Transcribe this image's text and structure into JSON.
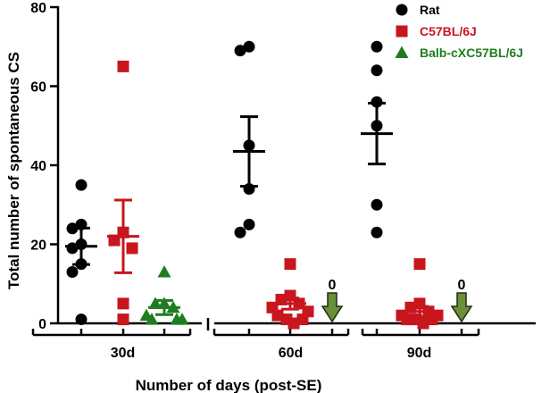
{
  "chart_data": {
    "type": "scatter",
    "title": "",
    "xlabel": "Number of days (post-SE)",
    "ylabel": "Total number of spontaneous CS",
    "ylim": [
      0,
      80
    ],
    "yticks": [
      0,
      20,
      40,
      60,
      80
    ],
    "grid": false,
    "legend_position": "top-right",
    "categories": [
      "30d",
      "60d",
      "90d"
    ],
    "colors": {
      "Rat": "#000000",
      "C57BL/6J": "#c8161d",
      "Balb-cXC57BL/6J": "#1f7d1f",
      "zero_arrow": "#3b5e2b"
    },
    "series": [
      {
        "name": "Rat",
        "marker": "circle",
        "points": {
          "30d": [
            35,
            25,
            24,
            20,
            19,
            15,
            13,
            1
          ],
          "60d": [
            70,
            69,
            45,
            34,
            25,
            23
          ],
          "90d": [
            70,
            64,
            56,
            50,
            30,
            23
          ]
        },
        "mean": {
          "30d": 19.5,
          "60d": 43.5,
          "90d": 48
        },
        "sem": {
          "30d": 4.6,
          "60d": 8.8,
          "90d": 7.7
        }
      },
      {
        "name": "C57BL/6J",
        "marker": "square",
        "points": {
          "30d": [
            65,
            23,
            21,
            19,
            5,
            1
          ],
          "60d": [
            15,
            7,
            6,
            5,
            4,
            3,
            2,
            1,
            1,
            0
          ],
          "90d": [
            15,
            5,
            4,
            3,
            2,
            2,
            1,
            1,
            1,
            0
          ]
        },
        "mean": {
          "30d": 22,
          "60d": 5,
          "90d": 3
        },
        "sem": {
          "30d": 9.2,
          "60d": 1.4,
          "90d": 1.3
        }
      },
      {
        "name": "Balb-cXC57BL/6J",
        "marker": "triangle",
        "points": {
          "30d": [
            13,
            5,
            5,
            4,
            2,
            1,
            1,
            1
          ],
          "60d": [],
          "90d": []
        },
        "mean": {
          "30d": 4,
          "60d": null,
          "90d": null
        },
        "sem": {
          "30d": 1.8,
          "60d": null,
          "90d": null
        }
      }
    ],
    "annotations": [
      {
        "category": "60d",
        "series": "Balb-cXC57BL/6J",
        "text": "0"
      },
      {
        "category": "90d",
        "series": "Balb-cXC57BL/6J",
        "text": "0"
      }
    ]
  }
}
